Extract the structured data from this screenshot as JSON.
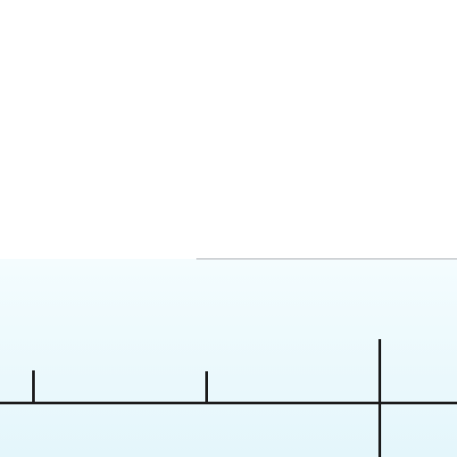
{
  "diagram": {
    "background_color": "#ffffff",
    "panel_color": "#e4f6fb",
    "line_color": "#1c1c1c",
    "axis_ticks": [
      {
        "id": "tick-1",
        "crosses_axis": false
      },
      {
        "id": "tick-2",
        "crosses_axis": false
      },
      {
        "id": "tick-3",
        "crosses_axis": true
      }
    ]
  }
}
